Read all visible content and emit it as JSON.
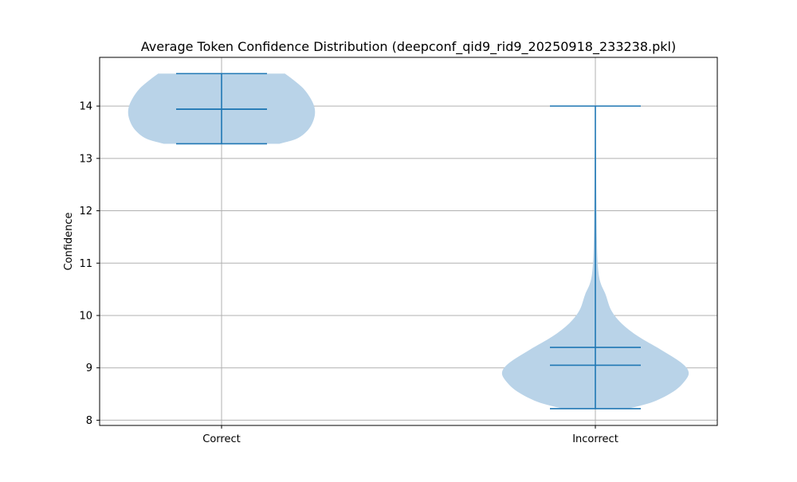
{
  "chart_data": {
    "type": "violin",
    "title": "Average Token Confidence Distribution (deepconf_qid9_rid9_20250918_233238.pkl)",
    "xlabel": "",
    "ylabel": "Confidence",
    "ylim": [
      7.9,
      14.93
    ],
    "yticks": [
      "8",
      "9",
      "10",
      "11",
      "12",
      "13",
      "14"
    ],
    "ytick_values": [
      8,
      9,
      10,
      11,
      12,
      13,
      14
    ],
    "grid": true,
    "categories": [
      "Correct",
      "Incorrect"
    ],
    "distributions": [
      {
        "name": "Correct",
        "min": 13.28,
        "max": 14.62,
        "mean": 13.94,
        "median": 13.94,
        "density": [
          [
            13.28,
            0.62
          ],
          [
            13.38,
            0.81
          ],
          [
            13.55,
            0.93
          ],
          [
            13.75,
            0.99
          ],
          [
            13.94,
            1.0
          ],
          [
            14.13,
            0.96
          ],
          [
            14.33,
            0.88
          ],
          [
            14.5,
            0.77
          ],
          [
            14.62,
            0.68
          ]
        ]
      },
      {
        "name": "Incorrect",
        "min": 8.22,
        "max": 14.0,
        "mean": 9.39,
        "median": 9.05,
        "density": [
          [
            8.22,
            0.35
          ],
          [
            8.35,
            0.62
          ],
          [
            8.55,
            0.84
          ],
          [
            8.75,
            0.96
          ],
          [
            8.92,
            1.0
          ],
          [
            9.1,
            0.92
          ],
          [
            9.35,
            0.7
          ],
          [
            9.6,
            0.46
          ],
          [
            9.85,
            0.28
          ],
          [
            10.1,
            0.17
          ],
          [
            10.4,
            0.11
          ],
          [
            10.6,
            0.06
          ],
          [
            10.8,
            0.035
          ],
          [
            11.1,
            0.022
          ],
          [
            11.5,
            0.016
          ],
          [
            12.0,
            0.012
          ],
          [
            12.5,
            0.009
          ],
          [
            13.0,
            0.007
          ],
          [
            13.5,
            0.004
          ],
          [
            14.0,
            0.0
          ]
        ]
      }
    ],
    "colors": {
      "body": "#b9d3e8",
      "lines": "#1f77b4",
      "grid": "#b0b0b0"
    }
  }
}
